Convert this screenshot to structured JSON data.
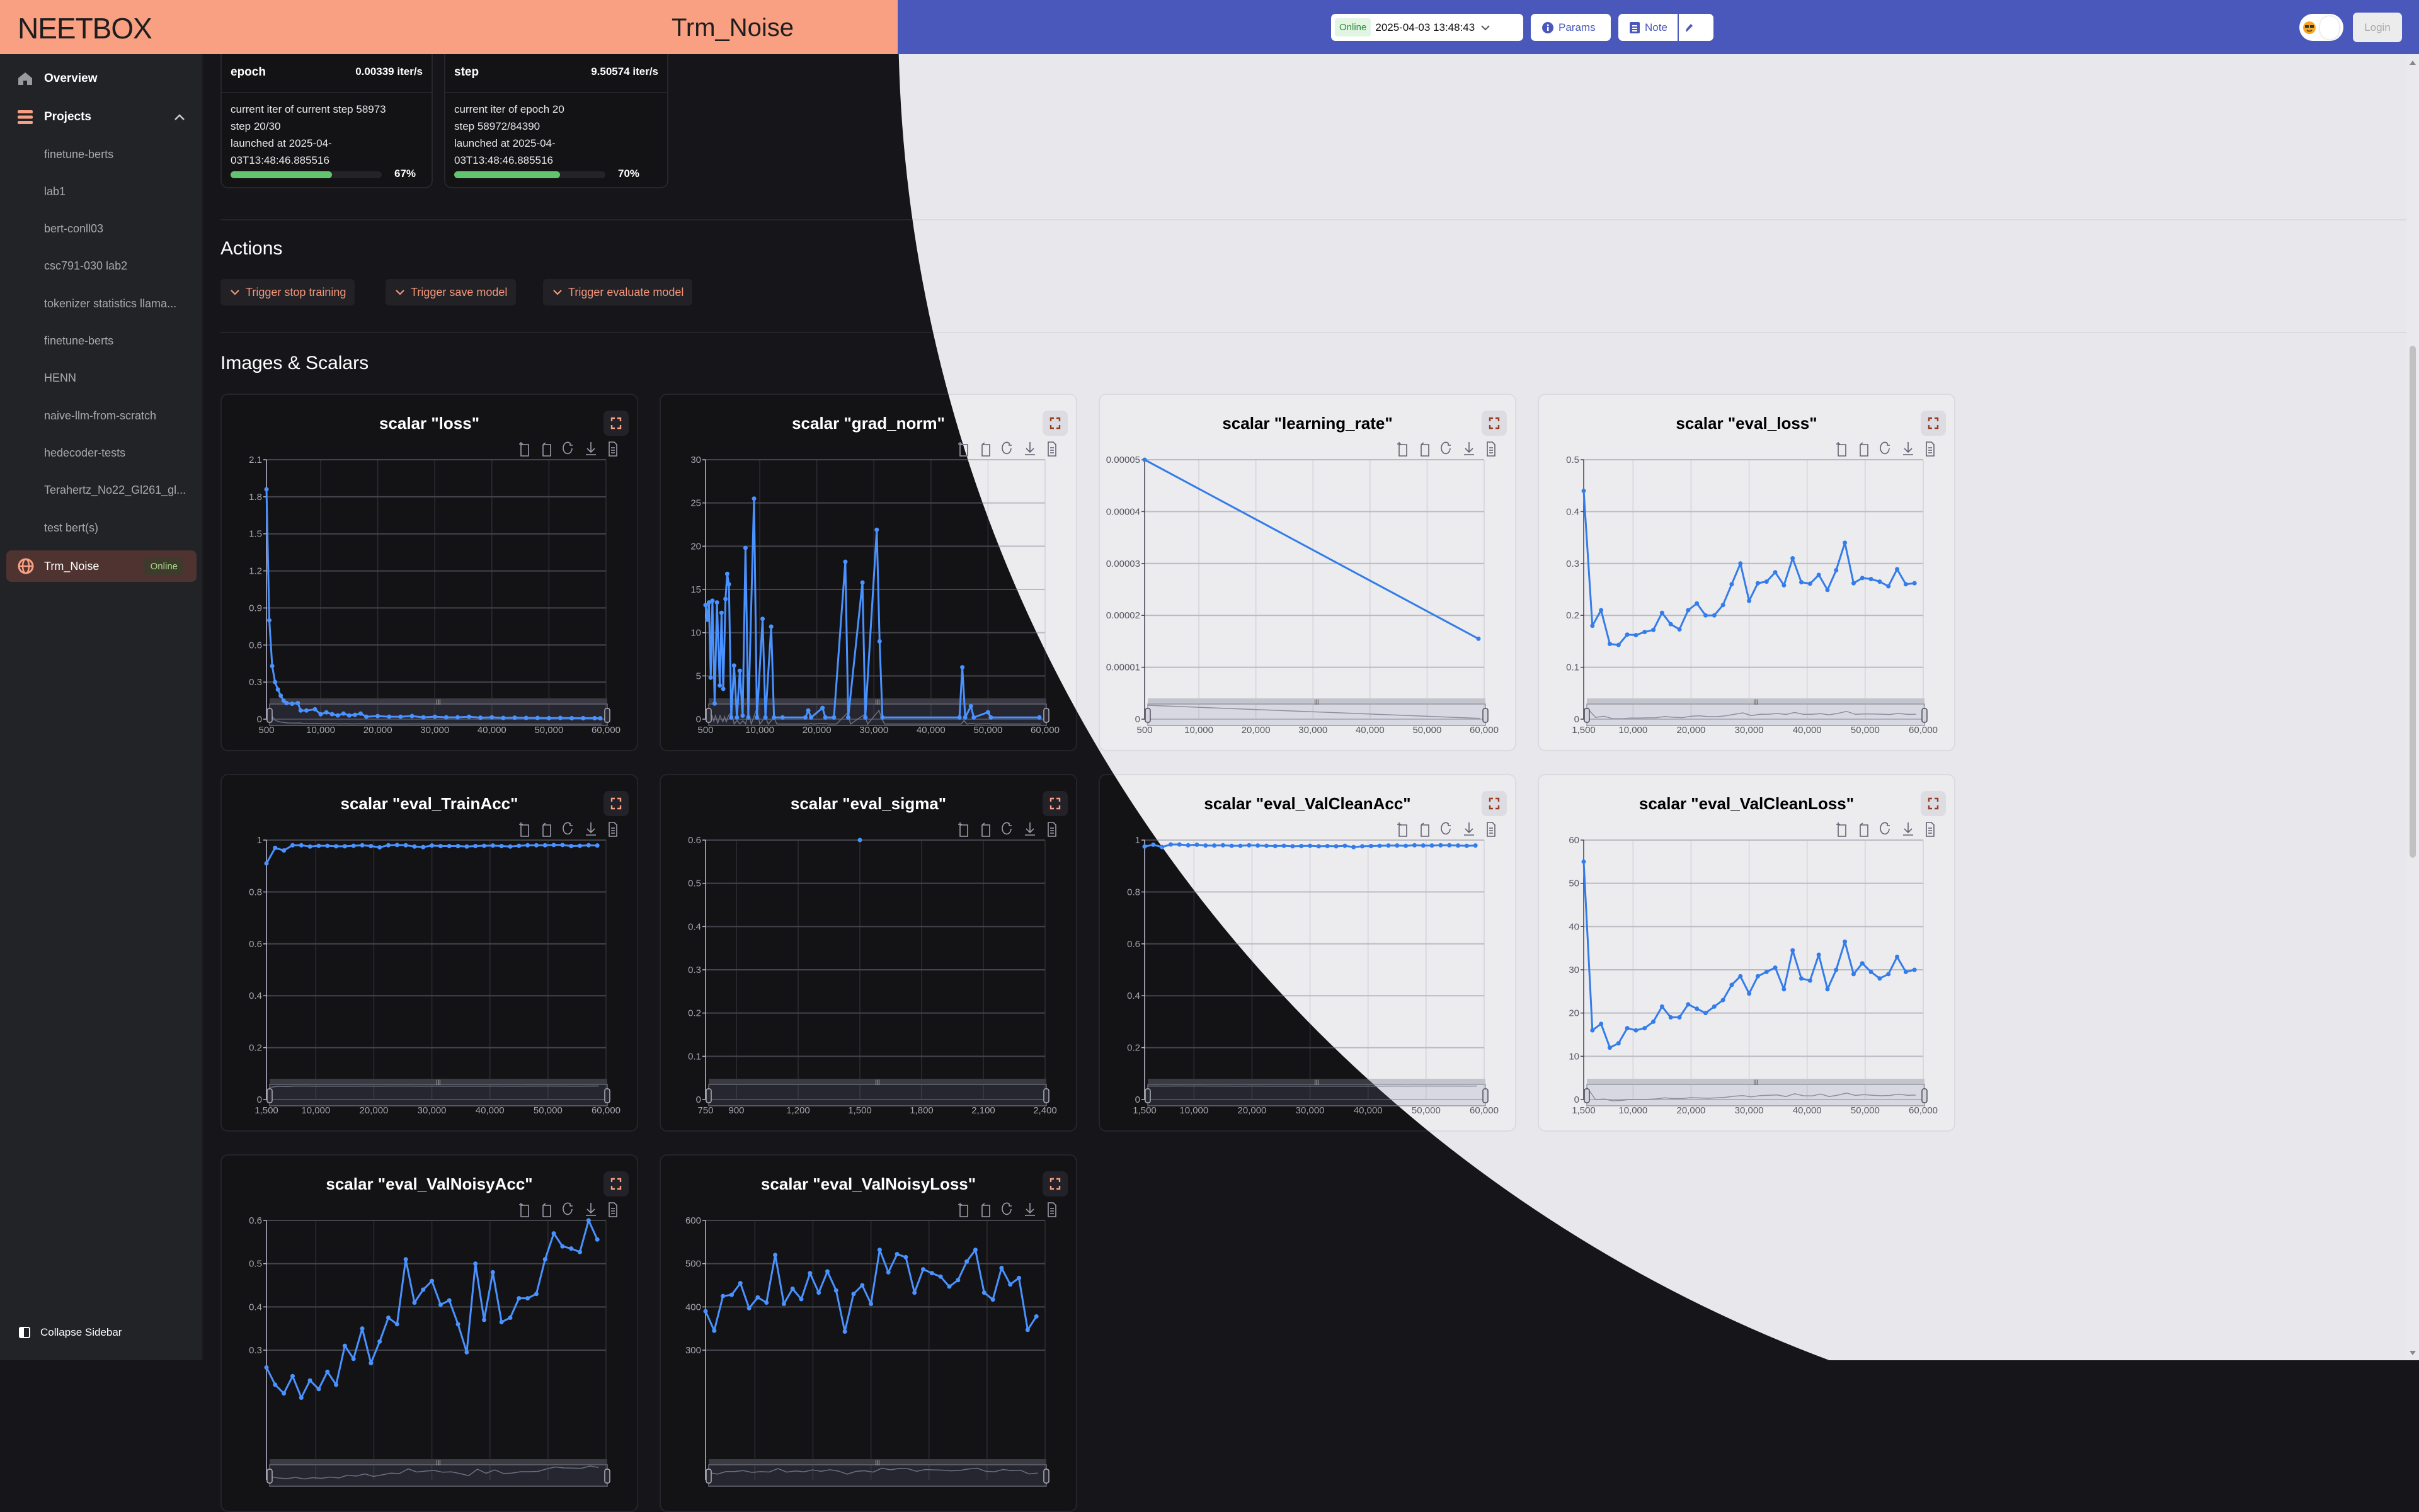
{
  "header": {
    "logo": "NEETBOX",
    "project_title": "Trm_Noise",
    "status_badge": "Online",
    "run_time": "2025-04-03 13:48:43",
    "params_label": "Params",
    "note_label": "Note",
    "login_label": "Login",
    "colors": {
      "dark_header": "#f9a083",
      "light_header": "#4a58bb"
    }
  },
  "sidebar": {
    "overview": "Overview",
    "projects": "Projects",
    "items": [
      "finetune-berts",
      "lab1",
      "bert-conll03",
      "csc791-030 lab2",
      "tokenizer statistics llama...",
      "finetune-berts",
      "HENN",
      "naive-llm-from-scratch",
      "hedecoder-tests",
      "Terahertz_No22_Gl261_gl...",
      "test bert(s)"
    ],
    "active_item": "Trm_Noise",
    "active_badge": "Online",
    "collapse_label": "Collapse Sidebar"
  },
  "progress": [
    {
      "name": "epoch",
      "rate": "0.00339 iter/s",
      "lines": [
        "current iter of current step 58973",
        "step 20/30",
        "launched at 2025-04-",
        "03T13:48:46.885516"
      ],
      "percent": 67,
      "percent_label": "67%"
    },
    {
      "name": "step",
      "rate": "9.50574 iter/s",
      "lines": [
        "current iter of epoch 20",
        "step 58972/84390",
        "launched at 2025-04-",
        "03T13:48:46.885516"
      ],
      "percent": 70,
      "percent_label": "70%"
    }
  ],
  "actions": {
    "heading": "Actions",
    "buttons": [
      "Trigger stop training",
      "Trigger save model",
      "Trigger evaluate model"
    ]
  },
  "scalars_heading": "Images & Scalars",
  "chart_data": [
    {
      "type": "line",
      "title": "scalar \"loss\"",
      "xlim": [
        500,
        60000
      ],
      "ylim": [
        0,
        2.1
      ],
      "xticks": [
        "500",
        "10,000",
        "20,000",
        "30,000",
        "40,000",
        "50,000",
        "60,000"
      ],
      "yticks": [
        "0",
        "0.3",
        "0.6",
        "0.9",
        "1.2",
        "1.5",
        "1.8",
        "2.1"
      ],
      "points": [
        [
          500,
          1.86
        ],
        [
          1000,
          0.8
        ],
        [
          1500,
          0.43
        ],
        [
          2000,
          0.3
        ],
        [
          2500,
          0.24
        ],
        [
          3000,
          0.19
        ],
        [
          3500,
          0.15
        ],
        [
          4000,
          0.13
        ],
        [
          5000,
          0.125
        ],
        [
          6000,
          0.13
        ],
        [
          6500,
          0.07
        ],
        [
          7500,
          0.07
        ],
        [
          9000,
          0.08
        ],
        [
          10000,
          0.04
        ],
        [
          11000,
          0.055
        ],
        [
          12000,
          0.04
        ],
        [
          13000,
          0.03
        ],
        [
          14000,
          0.045
        ],
        [
          15000,
          0.03
        ],
        [
          16000,
          0.035
        ],
        [
          17000,
          0.045
        ],
        [
          18000,
          0.02
        ],
        [
          20000,
          0.025
        ],
        [
          22000,
          0.02
        ],
        [
          24000,
          0.02
        ],
        [
          26000,
          0.025
        ],
        [
          28000,
          0.015
        ],
        [
          30000,
          0.02
        ],
        [
          32000,
          0.015
        ],
        [
          34000,
          0.015
        ],
        [
          36000,
          0.02
        ],
        [
          38000,
          0.012
        ],
        [
          40000,
          0.015
        ],
        [
          42000,
          0.01
        ],
        [
          44000,
          0.012
        ],
        [
          46000,
          0.01
        ],
        [
          48000,
          0.01
        ],
        [
          50000,
          0.008
        ],
        [
          52000,
          0.01
        ],
        [
          54000,
          0.008
        ],
        [
          56000,
          0.008
        ],
        [
          58000,
          0.008
        ],
        [
          59000,
          0.007
        ]
      ]
    },
    {
      "type": "line",
      "title": "scalar \"grad_norm\"",
      "xlim": [
        500,
        60000
      ],
      "ylim": [
        0,
        30
      ],
      "xticks": [
        "500",
        "10,000",
        "20,000",
        "30,000",
        "40,000",
        "50,000",
        "60,000"
      ],
      "yticks": [
        "0",
        "5",
        "10",
        "15",
        "20",
        "25",
        "30"
      ],
      "points": [
        [
          500,
          13.2
        ],
        [
          800,
          11.5
        ],
        [
          1100,
          13.5
        ],
        [
          1400,
          4.8
        ],
        [
          1700,
          13.7
        ],
        [
          2100,
          1.8
        ],
        [
          2500,
          13.5
        ],
        [
          3000,
          3.9
        ],
        [
          3300,
          12.3
        ],
        [
          3600,
          3.5
        ],
        [
          4000,
          13.9
        ],
        [
          4300,
          16.8
        ],
        [
          4600,
          15.6
        ],
        [
          5000,
          0.2
        ],
        [
          5500,
          6.2
        ],
        [
          6000,
          0.2
        ],
        [
          6500,
          5.6
        ],
        [
          7000,
          0.4
        ],
        [
          7500,
          19.8
        ],
        [
          8000,
          0.2
        ],
        [
          9000,
          25.5
        ],
        [
          9500,
          0.2
        ],
        [
          10500,
          11.6
        ],
        [
          11000,
          0.2
        ],
        [
          12000,
          10.7
        ],
        [
          12500,
          0.2
        ],
        [
          14000,
          0.2
        ],
        [
          18000,
          0.2
        ],
        [
          18500,
          1.0
        ],
        [
          19000,
          0.2
        ],
        [
          21000,
          1.3
        ],
        [
          21500,
          0.2
        ],
        [
          23000,
          0.2
        ],
        [
          25000,
          18.2
        ],
        [
          25500,
          0.2
        ],
        [
          28000,
          15.8
        ],
        [
          28500,
          0.2
        ],
        [
          30500,
          21.9
        ],
        [
          31000,
          9.0
        ],
        [
          31500,
          0.2
        ],
        [
          45000,
          0.2
        ],
        [
          45500,
          6.0
        ],
        [
          46000,
          0.2
        ],
        [
          47000,
          1.5
        ],
        [
          47500,
          0.2
        ],
        [
          50000,
          0.8
        ],
        [
          50500,
          0.2
        ],
        [
          59000,
          0.2
        ]
      ]
    },
    {
      "type": "line",
      "title": "scalar \"learning_rate\"",
      "xlim": [
        500,
        60000
      ],
      "ylim": [
        0,
        5e-05
      ],
      "xticks": [
        "500",
        "10,000",
        "20,000",
        "30,000",
        "40,000",
        "50,000",
        "60,000"
      ],
      "yticks": [
        "0",
        "0.00001",
        "0.00002",
        "0.00003",
        "0.00004",
        "0.00005"
      ],
      "points": [
        [
          500,
          5e-05
        ],
        [
          59000,
          1.55e-05
        ]
      ]
    },
    {
      "type": "line",
      "title": "scalar \"eval_loss\"",
      "xlim": [
        1500,
        60000
      ],
      "ylim": [
        0,
        0.5
      ],
      "xticks": [
        "1,500",
        "10,000",
        "20,000",
        "30,000",
        "40,000",
        "50,000",
        "60,000"
      ],
      "yticks": [
        "0",
        "0.1",
        "0.2",
        "0.3",
        "0.4",
        "0.5"
      ],
      "x": [
        1500,
        3000,
        4500,
        6000,
        7500,
        9000,
        10500,
        12000,
        13500,
        15000,
        16500,
        18000,
        19500,
        21000,
        22500,
        24000,
        25500,
        27000,
        28500,
        30000,
        31500,
        33000,
        34500,
        36000,
        37500,
        39000,
        40500,
        42000,
        43500,
        45000,
        46500,
        48000,
        49500,
        51000,
        52500,
        54000,
        55500,
        57000,
        58500
      ],
      "y": [
        0.44,
        0.18,
        0.21,
        0.145,
        0.143,
        0.163,
        0.162,
        0.168,
        0.172,
        0.205,
        0.183,
        0.173,
        0.21,
        0.223,
        0.2,
        0.2,
        0.22,
        0.26,
        0.3,
        0.228,
        0.262,
        0.265,
        0.283,
        0.258,
        0.31,
        0.264,
        0.261,
        0.278,
        0.249,
        0.287,
        0.34,
        0.262,
        0.272,
        0.27,
        0.265,
        0.256,
        0.289,
        0.26,
        0.262
      ]
    },
    {
      "type": "line",
      "title": "scalar \"eval_TrainAcc\"",
      "xlim": [
        1500,
        60000
      ],
      "ylim": [
        0,
        1
      ],
      "xticks": [
        "1,500",
        "10,000",
        "20,000",
        "30,000",
        "40,000",
        "50,000",
        "60,000"
      ],
      "yticks": [
        "0",
        "0.2",
        "0.4",
        "0.6",
        "0.8",
        "1"
      ],
      "x": [
        1500,
        3000,
        4500,
        6000,
        7500,
        9000,
        10500,
        12000,
        13500,
        15000,
        16500,
        18000,
        19500,
        21000,
        22500,
        24000,
        25500,
        27000,
        28500,
        30000,
        31500,
        33000,
        34500,
        36000,
        37500,
        39000,
        40500,
        42000,
        43500,
        45000,
        46500,
        48000,
        49500,
        51000,
        52500,
        54000,
        55500,
        57000,
        58500
      ],
      "y": [
        0.91,
        0.97,
        0.96,
        0.98,
        0.98,
        0.975,
        0.978,
        0.978,
        0.976,
        0.976,
        0.978,
        0.98,
        0.977,
        0.972,
        0.98,
        0.981,
        0.98,
        0.975,
        0.973,
        0.979,
        0.977,
        0.977,
        0.977,
        0.975,
        0.977,
        0.978,
        0.979,
        0.977,
        0.975,
        0.978,
        0.98,
        0.98,
        0.98,
        0.981,
        0.981,
        0.977,
        0.978,
        0.98,
        0.979
      ]
    },
    {
      "type": "line",
      "title": "scalar \"eval_sigma\"",
      "xlim": [
        750,
        2400
      ],
      "ylim": [
        0,
        0.6
      ],
      "xticks": [
        "750",
        "900",
        "1,200",
        "1,500",
        "1,800",
        "2,100",
        "2,400"
      ],
      "yticks": [
        "0",
        "0.1",
        "0.2",
        "0.3",
        "0.4",
        "0.5",
        "0.6"
      ],
      "points": [
        [
          1500,
          0.6
        ]
      ]
    },
    {
      "type": "line",
      "title": "scalar \"eval_ValCleanAcc\"",
      "xlim": [
        1500,
        60000
      ],
      "ylim": [
        0,
        1
      ],
      "xticks": [
        "1,500",
        "10,000",
        "20,000",
        "30,000",
        "40,000",
        "50,000",
        "60,000"
      ],
      "yticks": [
        "0",
        "0.2",
        "0.4",
        "0.6",
        "0.8",
        "1"
      ],
      "x": [
        1500,
        3000,
        4500,
        6000,
        7500,
        9000,
        10500,
        12000,
        13500,
        15000,
        16500,
        18000,
        19500,
        21000,
        22500,
        24000,
        25500,
        27000,
        28500,
        30000,
        31500,
        33000,
        34500,
        36000,
        37500,
        39000,
        40500,
        42000,
        43500,
        45000,
        46500,
        48000,
        49500,
        51000,
        52500,
        54000,
        55500,
        57000,
        58500
      ],
      "y": [
        0.975,
        0.982,
        0.973,
        0.983,
        0.983,
        0.98,
        0.982,
        0.979,
        0.979,
        0.98,
        0.978,
        0.978,
        0.98,
        0.979,
        0.978,
        0.977,
        0.978,
        0.976,
        0.977,
        0.978,
        0.976,
        0.977,
        0.976,
        0.978,
        0.973,
        0.976,
        0.977,
        0.978,
        0.979,
        0.979,
        0.978,
        0.98,
        0.979,
        0.979,
        0.98,
        0.98,
        0.979,
        0.978,
        0.979
      ]
    },
    {
      "type": "line",
      "title": "scalar \"eval_ValCleanLoss\"",
      "xlim": [
        1500,
        60000
      ],
      "ylim": [
        0,
        60
      ],
      "xticks": [
        "1,500",
        "10,000",
        "20,000",
        "30,000",
        "40,000",
        "50,000",
        "60,000"
      ],
      "yticks": [
        "0",
        "10",
        "20",
        "30",
        "40",
        "50",
        "60"
      ],
      "x": [
        1500,
        3000,
        4500,
        6000,
        7500,
        9000,
        10500,
        12000,
        13500,
        15000,
        16500,
        18000,
        19500,
        21000,
        22500,
        24000,
        25500,
        27000,
        28500,
        30000,
        31500,
        33000,
        34500,
        36000,
        37500,
        39000,
        40500,
        42000,
        43500,
        45000,
        46500,
        48000,
        49500,
        51000,
        52500,
        54000,
        55500,
        57000,
        58500
      ],
      "y": [
        55,
        16,
        17.5,
        12,
        13,
        16.5,
        16,
        16.5,
        18,
        21.5,
        19,
        19,
        22,
        21,
        20,
        21.5,
        23,
        26.5,
        28.5,
        24.5,
        28.5,
        29.5,
        30.5,
        25.5,
        34.5,
        28,
        27.5,
        33.5,
        25.5,
        30,
        36.5,
        29,
        31.5,
        29.5,
        28,
        29,
        33,
        29.5,
        30
      ]
    },
    {
      "type": "line",
      "title": "scalar \"eval_ValNoisyAcc\"",
      "xlim": [
        1500,
        60000
      ],
      "ylim": [
        0,
        0.6
      ],
      "xticks": [],
      "yticks": [
        "0.3",
        "0.4",
        "0.5",
        "0.6"
      ],
      "x": [
        1500,
        3000,
        4500,
        6000,
        7500,
        9000,
        10500,
        12000,
        13500,
        15000,
        16500,
        18000,
        19500,
        21000,
        22500,
        24000,
        25500,
        27000,
        28500,
        30000,
        31500,
        33000,
        34500,
        36000,
        37500,
        39000,
        40500,
        42000,
        43500,
        45000,
        46500,
        48000,
        49500,
        51000,
        52500,
        54000,
        55500,
        57000,
        58500
      ],
      "y": [
        0.26,
        0.22,
        0.2,
        0.24,
        0.19,
        0.23,
        0.21,
        0.25,
        0.22,
        0.31,
        0.28,
        0.35,
        0.27,
        0.32,
        0.375,
        0.36,
        0.51,
        0.41,
        0.44,
        0.46,
        0.405,
        0.415,
        0.36,
        0.295,
        0.5,
        0.37,
        0.48,
        0.365,
        0.375,
        0.42,
        0.42,
        0.43,
        0.51,
        0.57,
        0.54,
        0.535,
        0.527,
        0.6,
        0.556
      ]
    },
    {
      "type": "line",
      "title": "scalar \"eval_ValNoisyLoss\"",
      "xlim": [
        1500,
        60000
      ],
      "ylim": [
        0,
        600
      ],
      "xticks": [],
      "yticks": [
        "300",
        "400",
        "500",
        "600"
      ],
      "x": [
        1500,
        3000,
        4500,
        6000,
        7500,
        9000,
        10500,
        12000,
        13500,
        15000,
        16500,
        18000,
        19500,
        21000,
        22500,
        24000,
        25500,
        27000,
        28500,
        30000,
        31500,
        33000,
        34500,
        36000,
        37500,
        39000,
        40500,
        42000,
        43500,
        45000,
        46500,
        48000,
        49500,
        51000,
        52500,
        54000,
        55500,
        57000,
        58500
      ],
      "y": [
        390,
        345,
        425,
        428,
        455,
        397,
        422,
        410,
        520,
        407,
        442,
        418,
        478,
        433,
        482,
        438,
        343,
        430,
        450,
        407,
        532,
        480,
        522,
        515,
        433,
        487,
        478,
        470,
        447,
        462,
        505,
        532,
        433,
        417,
        490,
        452,
        467,
        347,
        378
      ]
    }
  ],
  "colors": {
    "accent_dark": "#f9a083",
    "line_dark": "#4992ff",
    "line_light": "#5470c6",
    "progress": "#63c46f"
  }
}
